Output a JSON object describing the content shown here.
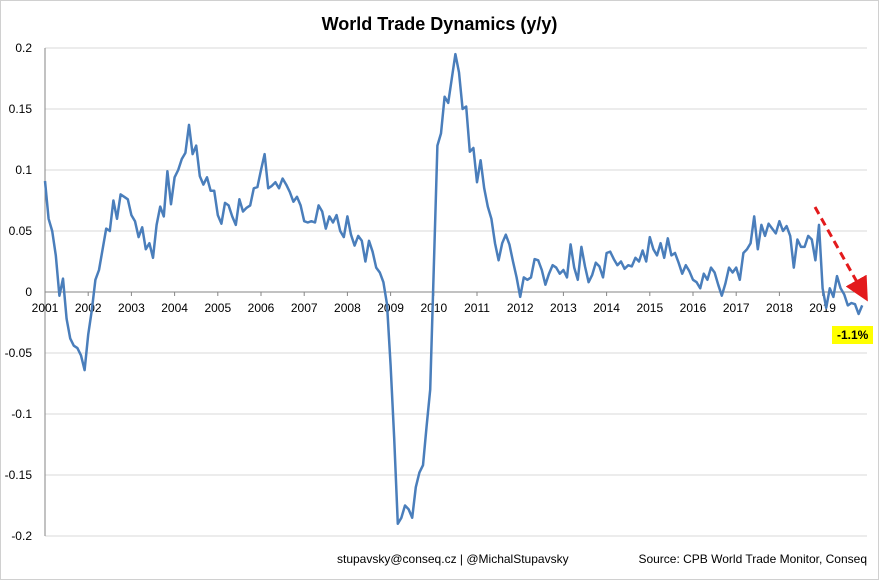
{
  "chart_data": {
    "type": "line",
    "title": "World Trade Dynamics (y/y)",
    "xlabel": "",
    "ylabel": "",
    "ylim": [
      -0.2,
      0.2
    ],
    "yticks": [
      "0.2",
      "0.15",
      "0.1",
      "0.05",
      "0",
      "-0.05",
      "-0.1",
      "-0.15",
      "-0.2"
    ],
    "xticks": [
      "2001",
      "2002",
      "2003",
      "2004",
      "2005",
      "2006",
      "2007",
      "2008",
      "2009",
      "2010",
      "2011",
      "2012",
      "2013",
      "2014",
      "2015",
      "2016",
      "2017",
      "2018",
      "2019"
    ],
    "grid": "horizontal",
    "series_color": "#4a7ebb",
    "x_start": "2001-01",
    "x_step": "month",
    "values": [
      0.091,
      0.06,
      0.05,
      0.03,
      -0.003,
      0.011,
      -0.022,
      -0.038,
      -0.044,
      -0.046,
      -0.052,
      -0.064,
      -0.035,
      -0.015,
      0.01,
      0.018,
      0.035,
      0.052,
      0.05,
      0.075,
      0.06,
      0.08,
      0.078,
      0.076,
      0.063,
      0.058,
      0.045,
      0.053,
      0.035,
      0.04,
      0.028,
      0.055,
      0.07,
      0.062,
      0.099,
      0.072,
      0.094,
      0.1,
      0.109,
      0.114,
      0.137,
      0.113,
      0.12,
      0.095,
      0.088,
      0.094,
      0.083,
      0.083,
      0.063,
      0.056,
      0.073,
      0.071,
      0.062,
      0.055,
      0.076,
      0.066,
      0.069,
      0.071,
      0.085,
      0.086,
      0.1,
      0.113,
      0.085,
      0.087,
      0.09,
      0.085,
      0.093,
      0.088,
      0.082,
      0.074,
      0.078,
      0.071,
      0.058,
      0.057,
      0.058,
      0.057,
      0.071,
      0.066,
      0.052,
      0.062,
      0.057,
      0.063,
      0.05,
      0.045,
      0.062,
      0.047,
      0.038,
      0.046,
      0.042,
      0.025,
      0.042,
      0.033,
      0.02,
      0.016,
      0.008,
      -0.01,
      -0.06,
      -0.12,
      -0.19,
      -0.185,
      -0.175,
      -0.178,
      -0.185,
      -0.16,
      -0.148,
      -0.142,
      -0.11,
      -0.08,
      0.02,
      0.12,
      0.13,
      0.16,
      0.155,
      0.175,
      0.195,
      0.18,
      0.15,
      0.152,
      0.115,
      0.118,
      0.09,
      0.108,
      0.085,
      0.07,
      0.06,
      0.04,
      0.026,
      0.04,
      0.047,
      0.039,
      0.025,
      0.012,
      -0.004,
      0.012,
      0.01,
      0.012,
      0.027,
      0.026,
      0.018,
      0.006,
      0.015,
      0.022,
      0.02,
      0.015,
      0.018,
      0.012,
      0.039,
      0.02,
      0.01,
      0.037,
      0.021,
      0.008,
      0.014,
      0.024,
      0.021,
      0.012,
      0.032,
      0.033,
      0.027,
      0.022,
      0.025,
      0.019,
      0.022,
      0.021,
      0.028,
      0.025,
      0.034,
      0.025,
      0.045,
      0.035,
      0.03,
      0.04,
      0.028,
      0.044,
      0.03,
      0.032,
      0.024,
      0.015,
      0.022,
      0.017,
      0.01,
      0.008,
      0.003,
      0.015,
      0.01,
      0.02,
      0.016,
      0.006,
      -0.003,
      0.007,
      0.02,
      0.016,
      0.02,
      0.01,
      0.032,
      0.035,
      0.04,
      0.062,
      0.035,
      0.055,
      0.046,
      0.056,
      0.052,
      0.048,
      0.058,
      0.05,
      0.054,
      0.046,
      0.02,
      0.043,
      0.037,
      0.037,
      0.046,
      0.043,
      0.026,
      0.055,
      0.003,
      -0.013,
      0.003,
      -0.004,
      0.013,
      0.003,
      -0.002,
      -0.011,
      -0.009,
      -0.01,
      -0.018,
      -0.011
    ],
    "annotation": {
      "label": "-1.1%",
      "background": "#ffff00",
      "arrow_color": "#e31a1c",
      "arrow_style": "dashed"
    }
  },
  "footer": {
    "contact": "stupavsky@conseq.cz  |  @MichalStupavsky",
    "source": "Source: CPB World Trade Monitor, Conseq"
  }
}
